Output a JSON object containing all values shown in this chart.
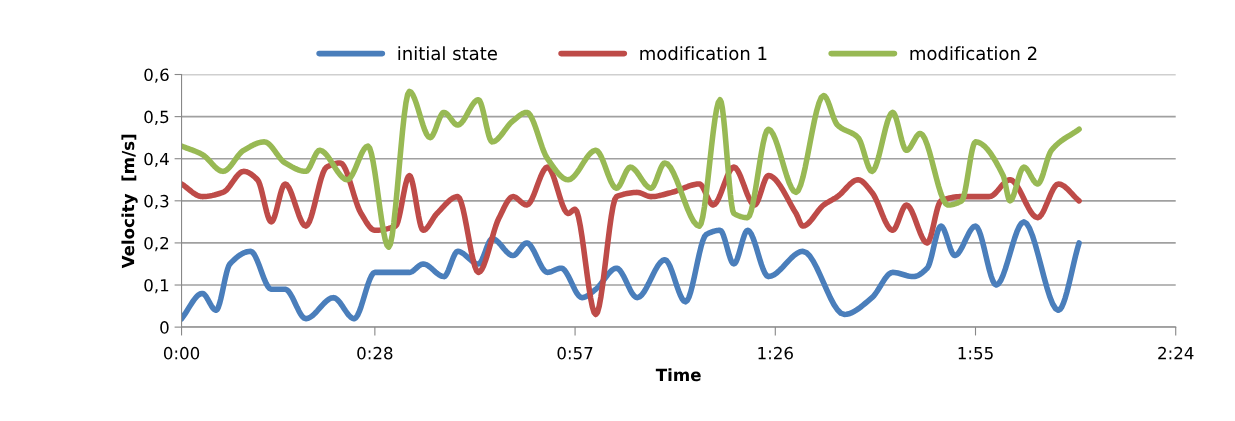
{
  "chart_data": {
    "type": "line",
    "xlabel": "Time",
    "ylabel": "Velocity  [m/s]",
    "xlim": [
      0,
      144
    ],
    "xticks": [
      {
        "value": 0,
        "label": "0:00"
      },
      {
        "value": 28,
        "label": "0:28"
      },
      {
        "value": 57,
        "label": "0:57"
      },
      {
        "value": 86,
        "label": "1:26"
      },
      {
        "value": 115,
        "label": "1:55"
      },
      {
        "value": 144,
        "label": "2:24"
      }
    ],
    "ylim": [
      0,
      0.6
    ],
    "yticks": [
      {
        "value": 0,
        "label": "0"
      },
      {
        "value": 0.1,
        "label": "0,1"
      },
      {
        "value": 0.2,
        "label": "0,2"
      },
      {
        "value": 0.3,
        "label": "0,3"
      },
      {
        "value": 0.4,
        "label": "0,4"
      },
      {
        "value": 0.5,
        "label": "0,5"
      },
      {
        "value": 0.6,
        "label": "0,6"
      }
    ],
    "grid": "y",
    "legend": "top",
    "marker": "none",
    "line_style": "solid",
    "series": [
      {
        "name": "initial state",
        "color": "#4a7ebb",
        "x": [
          0,
          3,
          5,
          7,
          10,
          13,
          15,
          18,
          22,
          25,
          28,
          33,
          35,
          38,
          40,
          43,
          45,
          48,
          50,
          53,
          55,
          58,
          60,
          63,
          66,
          70,
          73,
          76,
          78,
          80,
          82,
          85,
          90,
          96,
          100,
          103,
          106,
          108,
          110,
          112,
          115,
          118,
          122,
          127,
          130
        ],
        "values": [
          0.02,
          0.08,
          0.04,
          0.15,
          0.18,
          0.09,
          0.09,
          0.02,
          0.07,
          0.02,
          0.13,
          0.13,
          0.15,
          0.12,
          0.18,
          0.15,
          0.21,
          0.17,
          0.2,
          0.13,
          0.14,
          0.07,
          0.09,
          0.14,
          0.07,
          0.16,
          0.06,
          0.22,
          0.23,
          0.15,
          0.23,
          0.12,
          0.18,
          0.03,
          0.07,
          0.13,
          0.12,
          0.14,
          0.24,
          0.17,
          0.24,
          0.1,
          0.25,
          0.04,
          0.2
        ]
      },
      {
        "name": "modification 1",
        "color": "#be4b48",
        "x": [
          0,
          3,
          6,
          9,
          11,
          13,
          15,
          18,
          21,
          23,
          26,
          28,
          31,
          33,
          35,
          37,
          40,
          43,
          46,
          48,
          50,
          53,
          56,
          57,
          60,
          63,
          66,
          68,
          71,
          75,
          77,
          80,
          83,
          85,
          89,
          90,
          93,
          95,
          98,
          100,
          103,
          105,
          108,
          110,
          113,
          117,
          120,
          124,
          127,
          130
        ],
        "values": [
          0.34,
          0.31,
          0.32,
          0.37,
          0.35,
          0.25,
          0.34,
          0.24,
          0.38,
          0.39,
          0.27,
          0.23,
          0.24,
          0.36,
          0.23,
          0.27,
          0.31,
          0.13,
          0.26,
          0.31,
          0.29,
          0.38,
          0.27,
          0.28,
          0.03,
          0.31,
          0.32,
          0.31,
          0.32,
          0.34,
          0.29,
          0.38,
          0.29,
          0.36,
          0.27,
          0.24,
          0.29,
          0.31,
          0.35,
          0.32,
          0.23,
          0.29,
          0.2,
          0.3,
          0.31,
          0.31,
          0.35,
          0.26,
          0.34,
          0.3
        ]
      },
      {
        "name": "modification 2",
        "color": "#98b954",
        "x": [
          0,
          3,
          6,
          9,
          12,
          15,
          18,
          20,
          24,
          27,
          30,
          33,
          36,
          38,
          40,
          43,
          45,
          48,
          50,
          53,
          56,
          60,
          63,
          65,
          68,
          70,
          75,
          78,
          80,
          82,
          85,
          89,
          93,
          95,
          98,
          100,
          103,
          105,
          107,
          111,
          113,
          115,
          119,
          120,
          122,
          124,
          126,
          130
        ],
        "values": [
          0.43,
          0.41,
          0.37,
          0.42,
          0.44,
          0.39,
          0.37,
          0.42,
          0.35,
          0.43,
          0.19,
          0.56,
          0.45,
          0.51,
          0.48,
          0.54,
          0.44,
          0.49,
          0.51,
          0.4,
          0.35,
          0.42,
          0.33,
          0.38,
          0.33,
          0.39,
          0.24,
          0.54,
          0.27,
          0.26,
          0.47,
          0.32,
          0.55,
          0.48,
          0.45,
          0.37,
          0.51,
          0.42,
          0.46,
          0.29,
          0.3,
          0.44,
          0.36,
          0.3,
          0.38,
          0.34,
          0.42,
          0.47
        ]
      }
    ]
  }
}
